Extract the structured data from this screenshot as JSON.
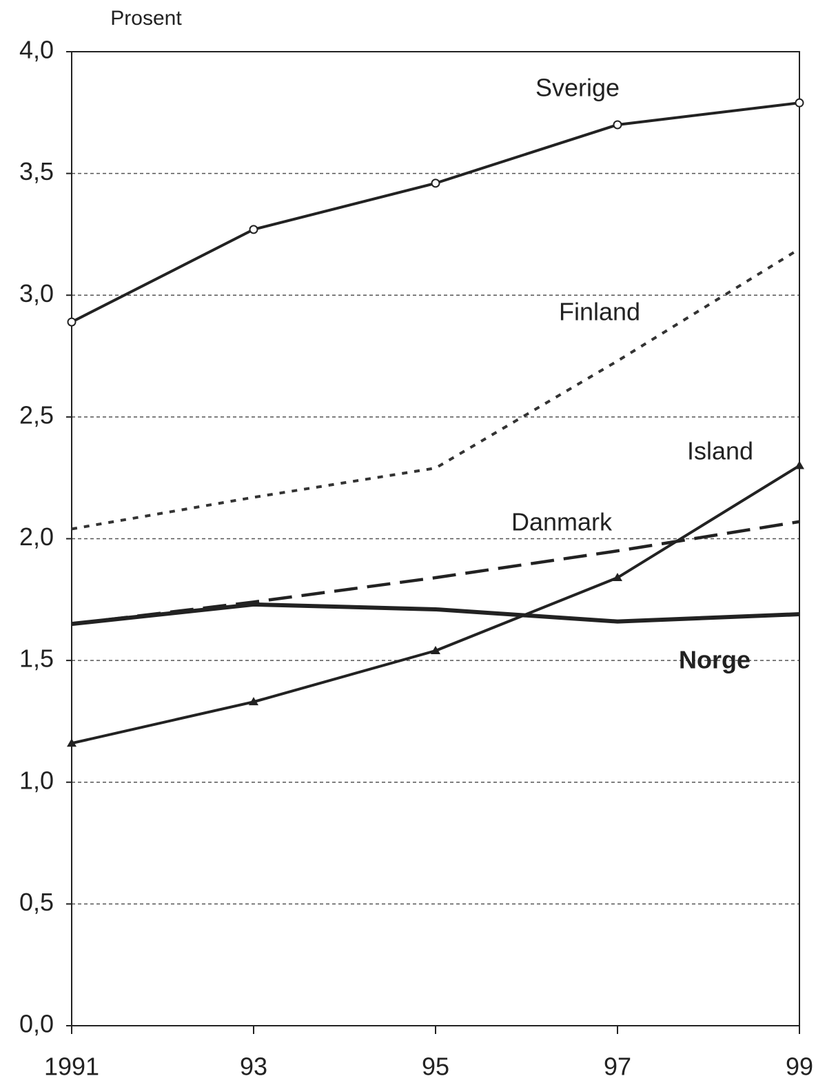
{
  "chart_data": {
    "type": "line",
    "y_label": "Prosent",
    "categories": [
      "1991",
      "93",
      "95",
      "97",
      "99"
    ],
    "series": [
      {
        "name": "Sverige",
        "color": "#222222",
        "dash": "solid",
        "marker": "circle",
        "values": [
          2.89,
          3.27,
          3.46,
          3.7,
          3.79
        ]
      },
      {
        "name": "Finland",
        "color": "#333333",
        "dash": "dotted",
        "marker": "none",
        "values": [
          2.04,
          2.17,
          2.29,
          2.73,
          3.19
        ]
      },
      {
        "name": "Island",
        "color": "#222222",
        "dash": "solid",
        "marker": "triangle",
        "values": [
          1.16,
          1.33,
          1.54,
          1.84,
          2.3
        ]
      },
      {
        "name": "Danmark",
        "color": "#222222",
        "dash": "dashed",
        "marker": "none",
        "values": [
          1.65,
          1.74,
          1.84,
          1.95,
          2.07
        ]
      },
      {
        "name": "Norge",
        "color": "#222222",
        "dash": "thick",
        "marker": "none",
        "values": [
          1.65,
          1.73,
          1.71,
          1.66,
          1.69
        ]
      }
    ],
    "ylim": [
      0,
      4
    ],
    "yticks": [
      {
        "value": 0,
        "label": "0,0"
      },
      {
        "value": 0.5,
        "label": "0,5"
      },
      {
        "value": 1,
        "label": "1,0"
      },
      {
        "value": 1.5,
        "label": "1,5"
      },
      {
        "value": 2,
        "label": "2,0"
      },
      {
        "value": 2.5,
        "label": "2,5"
      },
      {
        "value": 3,
        "label": "3,0"
      },
      {
        "value": 3.5,
        "label": "3,5"
      },
      {
        "value": 4,
        "label": "4,0"
      }
    ],
    "grid": true
  }
}
